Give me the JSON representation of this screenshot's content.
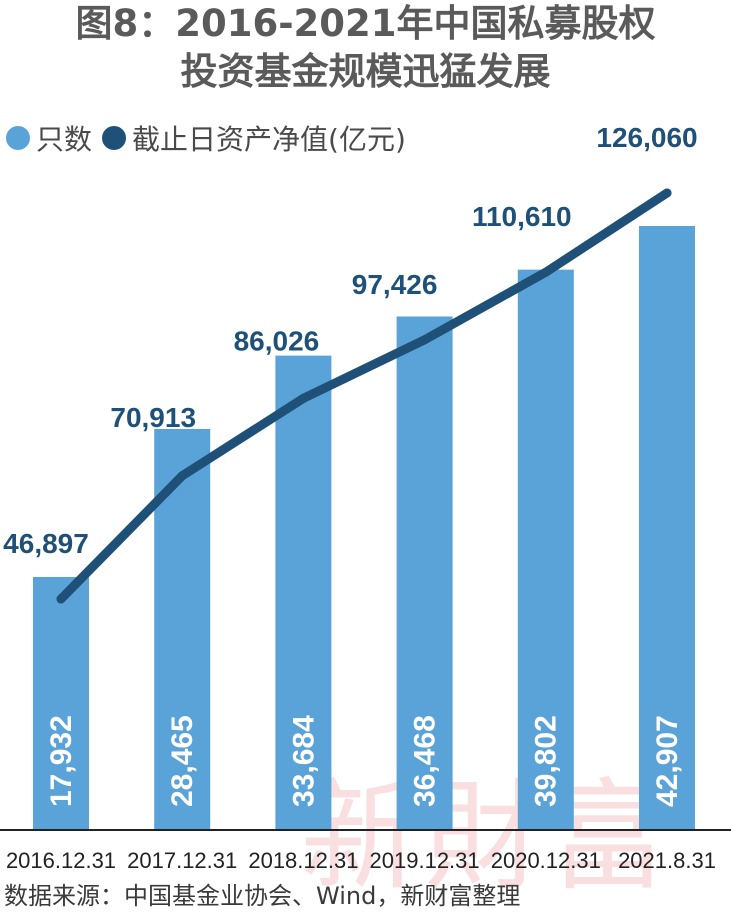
{
  "title_line1": "图8：2016-2021年中国私募股权",
  "title_line2": "投资基金规模迅猛发展",
  "legend": [
    {
      "label": "只数",
      "color": "#5aa3d8",
      "icon": "circle-light-blue"
    },
    {
      "label": "截止日资产净值(亿元)",
      "color": "#1f5078",
      "icon": "circle-dark-blue"
    }
  ],
  "source": "数据来源：中国基金业协会、Wind，新财富整理",
  "watermark": "新財富",
  "colors": {
    "bar": "#5aa3d8",
    "line": "#1f5078",
    "bar_label": "#ffffff",
    "line_label": "#1f5078",
    "axis": "#222222"
  },
  "chart_data": {
    "type": "bar",
    "categories": [
      "2016.12.31",
      "2017.12.31",
      "2018.12.31",
      "2019.12.31",
      "2020.12.31",
      "2021.8.31"
    ],
    "series": [
      {
        "name": "只数",
        "type": "bar",
        "values": [
          17932,
          28465,
          33684,
          36468,
          39802,
          42907
        ],
        "labels": [
          "17,932",
          "28,465",
          "33,684",
          "36,468",
          "39,802",
          "42,907"
        ]
      },
      {
        "name": "截止日资产净值(亿元)",
        "type": "line",
        "values": [
          46897,
          70913,
          86026,
          97426,
          110610,
          126060
        ],
        "labels": [
          "46,897",
          "70,913",
          "86,026",
          "97,426",
          "110,610",
          "126,060"
        ]
      }
    ],
    "title": "图8：2016-2021年中国私募股权投资基金规模迅猛发展",
    "grid": false,
    "legend_position": "top-left"
  }
}
